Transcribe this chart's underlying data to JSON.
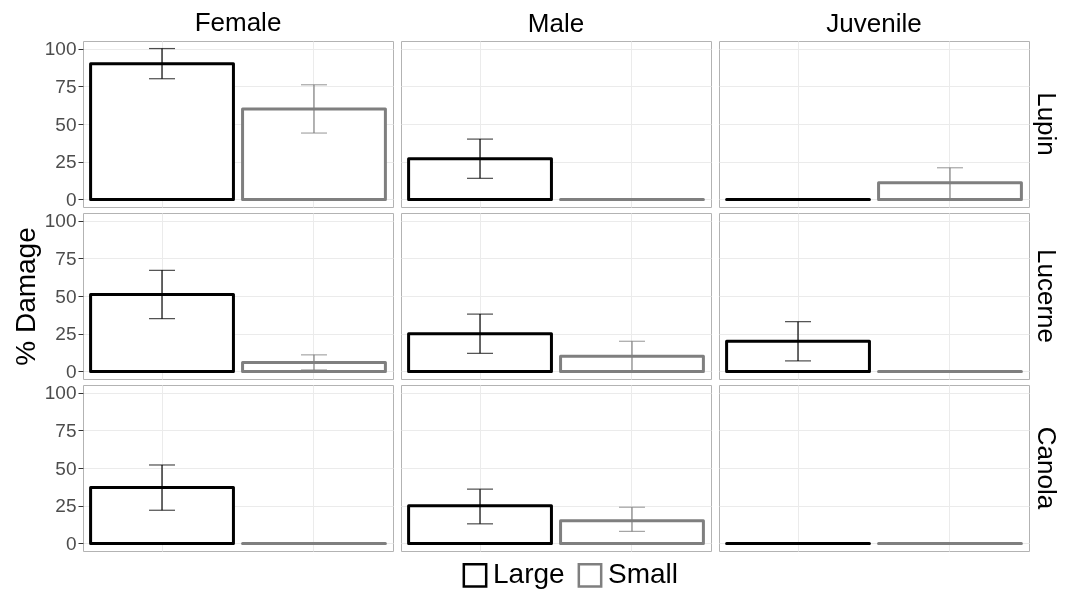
{
  "chart_data": [
    {
      "type": "bar",
      "annotations": [
        "Lupin"
      ],
      "categories": [
        "Female",
        "Male",
        "Juvenile"
      ],
      "series": [
        {
          "color": "#000000",
          "values": [
            90,
            27,
            0
          ],
          "errors": [
            [
              80,
              100
            ],
            [
              14,
              40
            ],
            null
          ]
        },
        {
          "color": "#7f7f7f",
          "values": [
            60,
            0,
            11
          ],
          "errors": [
            [
              44,
              76
            ],
            null,
            [
              0,
              21
            ]
          ]
        }
      ],
      "ylim": [
        -5,
        105
      ],
      "yticks": [
        0,
        25,
        50,
        75,
        100
      ],
      "grid": true
    },
    {
      "type": "bar",
      "ylabel": "% Damage",
      "annotations": [
        "Lucerne"
      ],
      "categories": [
        null,
        null,
        null
      ],
      "series": [
        {
          "color": "#000000",
          "values": [
            51,
            25,
            20
          ],
          "errors": [
            [
              35,
              67
            ],
            [
              12,
              38
            ],
            [
              7,
              33
            ]
          ]
        },
        {
          "color": "#7f7f7f",
          "values": [
            6,
            10,
            0
          ],
          "errors": [
            [
              1,
              11
            ],
            [
              0,
              20
            ],
            null
          ]
        }
      ],
      "ylim": [
        -5,
        105
      ],
      "yticks": [
        0,
        25,
        50,
        75,
        100
      ],
      "grid": true,
      "tick_labels": "y"
    },
    {
      "type": "bar",
      "legend": "bottom",
      "annotations": [
        "Canola"
      ],
      "categories": [
        null,
        null,
        null
      ],
      "series": [
        {
          "name": "Large",
          "color": "#000000",
          "values": [
            37,
            25,
            0
          ],
          "errors": [
            [
              22,
              52
            ],
            [
              13,
              36
            ],
            null
          ]
        },
        {
          "name": "Small",
          "color": "#7f7f7f",
          "values": [
            0,
            15,
            0
          ],
          "errors": [
            null,
            [
              8,
              24
            ],
            null
          ]
        }
      ],
      "ylim": [
        -5,
        105
      ],
      "yticks": [
        0,
        25,
        50,
        75,
        100
      ],
      "grid": true,
      "tick_labels": "y"
    }
  ]
}
